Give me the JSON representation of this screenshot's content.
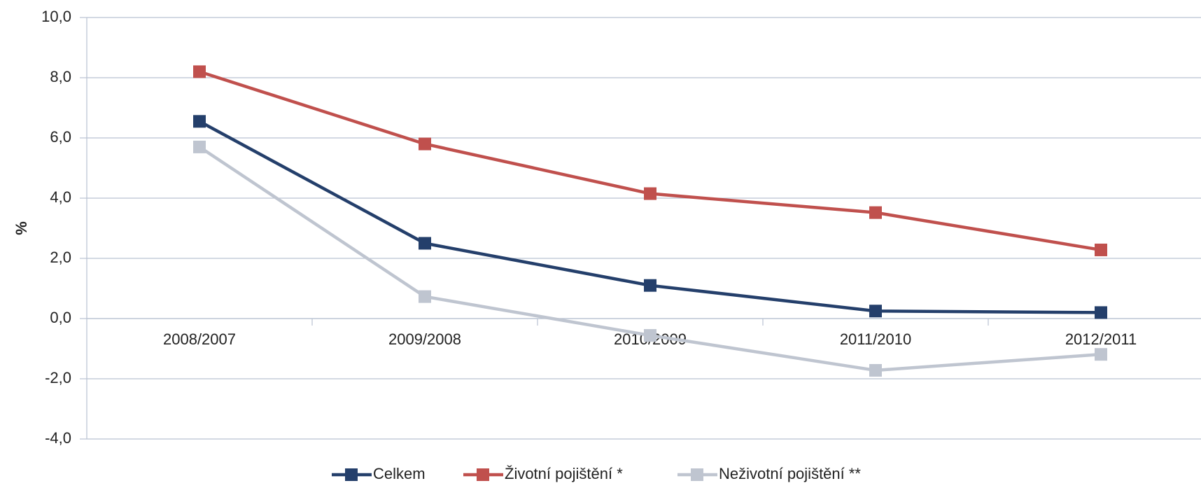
{
  "chart_data": {
    "type": "line",
    "y_label": "%",
    "categories": [
      "2008/2007",
      "2009/2008",
      "2010/2009",
      "2011/2010",
      "2012/2011"
    ],
    "series": [
      {
        "name": "Celkem",
        "color": "#243f6b",
        "values": [
          6.55,
          2.5,
          1.1,
          0.25,
          0.2
        ]
      },
      {
        "name": "Životní pojištění *",
        "color": "#c0504d",
        "values": [
          8.2,
          5.8,
          4.15,
          3.52,
          2.28
        ]
      },
      {
        "name": "Neživotní pojištění **",
        "color": "#bfc5d0",
        "values": [
          5.7,
          0.73,
          -0.56,
          -1.72,
          -1.19
        ]
      }
    ],
    "ylim": [
      -4,
      10
    ],
    "yticks": [
      {
        "value": -4,
        "label": "-4,0"
      },
      {
        "value": -2,
        "label": "-2,0"
      },
      {
        "value": 0,
        "label": "0,0"
      },
      {
        "value": 2,
        "label": "2,0"
      },
      {
        "value": 4,
        "label": "4,0"
      },
      {
        "value": 6,
        "label": "6,0"
      },
      {
        "value": 8,
        "label": "8,0"
      },
      {
        "value": 10,
        "label": "10,0"
      }
    ],
    "grid": true,
    "legend": "bottom"
  }
}
